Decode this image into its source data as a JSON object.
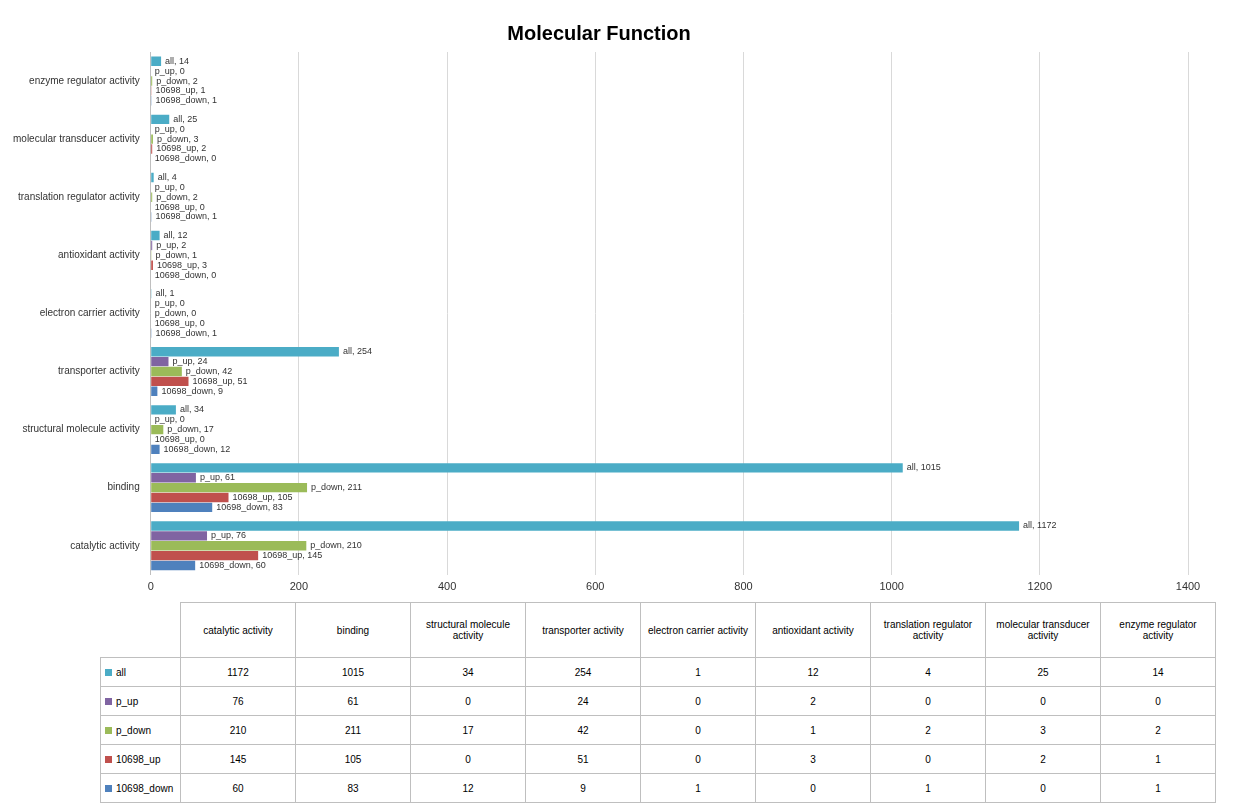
{
  "chart_data": {
    "type": "bar",
    "title": "Molecular Function",
    "orientation": "horizontal",
    "categories": [
      "catalytic activity",
      "binding",
      "structural molecule activity",
      "transporter activity",
      "electron carrier activity",
      "antioxidant activity",
      "translation regulator activity",
      "molecular transducer activity",
      "enzyme regulator activity"
    ],
    "series": [
      {
        "name": "all",
        "color": "#4bacc6",
        "values": [
          1172,
          1015,
          34,
          254,
          1,
          12,
          4,
          25,
          14
        ],
        "value_labels": [
          "all, 1172",
          "all, 1015",
          "all, 34",
          "all, 254",
          "all, 1",
          "all, 12",
          "all, 4",
          "all, 25",
          "all, 14"
        ]
      },
      {
        "name": "p_up",
        "color": "#8064a2",
        "values": [
          76,
          61,
          0,
          24,
          0,
          2,
          0,
          0,
          0
        ],
        "value_labels": [
          "p_up, 76",
          "p_up, 61",
          "p_up, 0",
          "p_up, 24",
          "p_up, 0",
          "p_up, 2",
          "p_up, 0",
          "p_up, 0",
          "p_up, 0"
        ]
      },
      {
        "name": "p_down",
        "color": "#9bbb59",
        "values": [
          210,
          211,
          17,
          42,
          0,
          1,
          2,
          3,
          2
        ],
        "value_labels": [
          "p_down, 210",
          "p_down, 211",
          "p_down, 17",
          "p_down, 42",
          "p_down, 0",
          "p_down, 1",
          "p_down, 2",
          "p_down, 3",
          "p_down, 2"
        ]
      },
      {
        "name": "10698_up",
        "color": "#c0504d",
        "values": [
          145,
          105,
          0,
          51,
          0,
          3,
          0,
          2,
          1
        ],
        "value_labels": [
          "10698_up, 145",
          "10698_up, 105",
          "10698_up, 0",
          "10698_up, 51",
          "10698_up, 0",
          "10698_up, 3",
          "10698_up, 0",
          "10698_up, 2",
          "10698_up, 1"
        ]
      },
      {
        "name": "10698_down",
        "color": "#4f81bd",
        "values": [
          60,
          83,
          12,
          9,
          1,
          0,
          1,
          0,
          1
        ],
        "value_labels": [
          "10698_down, 60",
          "10698_down, 83",
          "10698_down, 12",
          "10698_down, 9",
          "10698_down, 1",
          "10698_down, 0",
          "10698_down, 1",
          "10698_down, 0",
          "10698_down, 1"
        ]
      }
    ],
    "xlim": [
      0,
      1400
    ],
    "xticks": [
      0,
      200,
      400,
      600,
      800,
      1000,
      1200,
      1400
    ],
    "grid": true,
    "data_labels": true
  }
}
